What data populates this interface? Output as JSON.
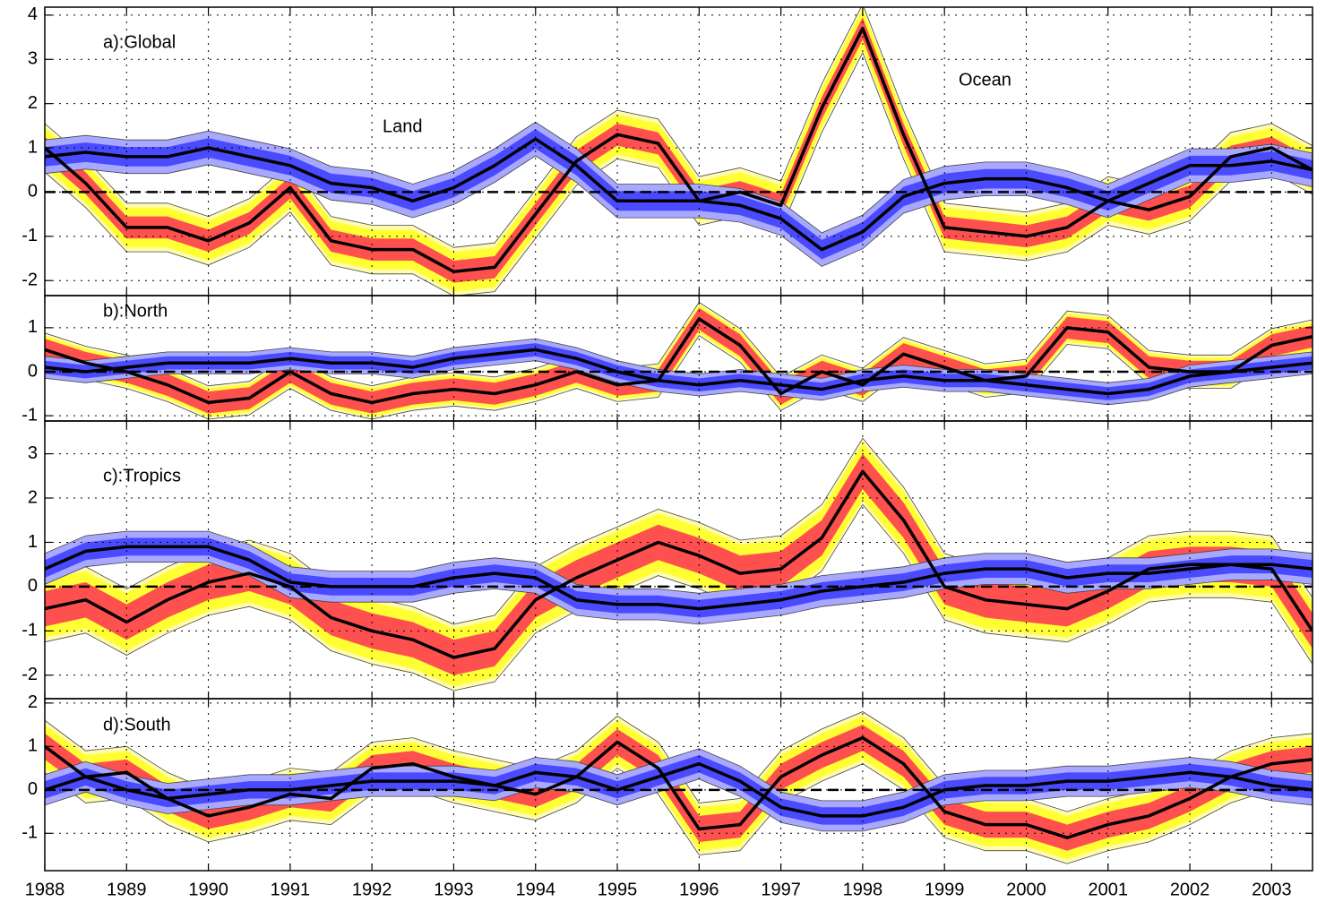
{
  "chart_data": [
    {
      "type": "line",
      "annotation": "a):Global",
      "x": [
        1988,
        1988.5,
        1989,
        1989.5,
        1990,
        1990.5,
        1991,
        1991.5,
        1992,
        1992.5,
        1993,
        1993.5,
        1994,
        1994.5,
        1995,
        1995.5,
        1996,
        1996.5,
        1997,
        1997.5,
        1998,
        1998.5,
        1999,
        1999.5,
        2000,
        2000.5,
        2001,
        2001.5,
        2002,
        2002.5,
        2003,
        2003.5
      ],
      "xlim": [
        1988,
        2003.5
      ],
      "xticks": [
        1988,
        1989,
        1990,
        1991,
        1992,
        1993,
        1994,
        1995,
        1996,
        1997,
        1998,
        1999,
        2000,
        2001,
        2002,
        2003
      ],
      "ylim": [
        -2.34,
        4.18
      ],
      "yticks": [
        -2,
        -1,
        0,
        1,
        2,
        3,
        4
      ],
      "grid": true,
      "series": [
        {
          "name": "Land",
          "label_color": "#ff2020",
          "color": "#000000",
          "values": [
            1.0,
            0.2,
            -0.8,
            -0.8,
            -1.1,
            -0.7,
            0.1,
            -1.1,
            -1.3,
            -1.3,
            -1.8,
            -1.7,
            -0.5,
            0.7,
            1.3,
            1.1,
            -0.2,
            0.0,
            -0.3,
            1.9,
            3.7,
            1.3,
            -0.8,
            -0.9,
            -1.0,
            -0.8,
            -0.2,
            -0.4,
            -0.1,
            0.8,
            1.0,
            0.5
          ],
          "band_colors": [
            "#fffbb0",
            "#ffff33",
            "#ff5050"
          ],
          "band_halfwidths": [
            0.55,
            0.45,
            0.25
          ]
        },
        {
          "name": "Ocean",
          "label_color": "#3030ff",
          "color": "#000000",
          "values": [
            0.8,
            0.9,
            0.8,
            0.8,
            1.0,
            0.8,
            0.6,
            0.2,
            0.1,
            -0.2,
            0.1,
            0.6,
            1.2,
            0.6,
            -0.2,
            -0.2,
            -0.2,
            -0.3,
            -0.6,
            -1.3,
            -0.9,
            -0.1,
            0.2,
            0.3,
            0.3,
            0.1,
            -0.2,
            0.2,
            0.6,
            0.6,
            0.7,
            0.5
          ],
          "band_colors": [
            "#a8a8ff",
            "#4a4aff"
          ],
          "band_halfwidths": [
            0.38,
            0.22
          ]
        }
      ]
    },
    {
      "type": "line",
      "annotation": "b):North",
      "x": [
        1988,
        1988.5,
        1989,
        1989.5,
        1990,
        1990.5,
        1991,
        1991.5,
        1992,
        1992.5,
        1993,
        1993.5,
        1994,
        1994.5,
        1995,
        1995.5,
        1996,
        1996.5,
        1997,
        1997.5,
        1998,
        1998.5,
        1999,
        1999.5,
        2000,
        2000.5,
        2001,
        2001.5,
        2002,
        2002.5,
        2003,
        2003.5
      ],
      "xlim": [
        1988,
        2003.5
      ],
      "xticks": [
        1988,
        1989,
        1990,
        1991,
        1992,
        1993,
        1994,
        1995,
        1996,
        1997,
        1998,
        1999,
        2000,
        2001,
        2002,
        2003
      ],
      "ylim": [
        -1.12,
        1.73
      ],
      "yticks": [
        -1,
        0,
        1
      ],
      "grid": true,
      "series": [
        {
          "color": "#000000",
          "values": [
            0.5,
            0.2,
            0.0,
            -0.3,
            -0.7,
            -0.6,
            0.0,
            -0.5,
            -0.7,
            -0.5,
            -0.4,
            -0.5,
            -0.3,
            0.0,
            -0.3,
            -0.2,
            1.2,
            0.6,
            -0.5,
            0.0,
            -0.3,
            0.4,
            0.1,
            -0.2,
            -0.1,
            1.0,
            0.9,
            0.1,
            0.0,
            0.0,
            0.6,
            0.8
          ],
          "band_colors": [
            "#fffbb0",
            "#ffff33",
            "#ff5050"
          ],
          "band_halfwidths": [
            0.38,
            0.32,
            0.25
          ]
        },
        {
          "color": "#000000",
          "values": [
            0.1,
            0.0,
            0.1,
            0.2,
            0.2,
            0.2,
            0.3,
            0.2,
            0.2,
            0.1,
            0.3,
            0.4,
            0.5,
            0.3,
            0.0,
            -0.2,
            -0.3,
            -0.2,
            -0.3,
            -0.4,
            -0.2,
            -0.1,
            -0.2,
            -0.2,
            -0.3,
            -0.4,
            -0.5,
            -0.4,
            -0.1,
            0.0,
            0.1,
            0.2
          ],
          "band_colors": [
            "#a8a8ff",
            "#4a4aff"
          ],
          "band_halfwidths": [
            0.25,
            0.15
          ]
        }
      ]
    },
    {
      "type": "line",
      "annotation": "c):Tropics",
      "x": [
        1988,
        1988.5,
        1989,
        1989.5,
        1990,
        1990.5,
        1991,
        1991.5,
        1992,
        1992.5,
        1993,
        1993.5,
        1994,
        1994.5,
        1995,
        1995.5,
        1996,
        1996.5,
        1997,
        1997.5,
        1998,
        1998.5,
        1999,
        1999.5,
        2000,
        2000.5,
        2001,
        2001.5,
        2002,
        2002.5,
        2003,
        2003.5
      ],
      "xlim": [
        1988,
        2003.5
      ],
      "xticks": [
        1988,
        1989,
        1990,
        1991,
        1992,
        1993,
        1994,
        1995,
        1996,
        1997,
        1998,
        1999,
        2000,
        2001,
        2002,
        2003
      ],
      "ylim": [
        -2.53,
        3.74
      ],
      "yticks": [
        -2,
        -1,
        0,
        1,
        2,
        3
      ],
      "grid": true,
      "series": [
        {
          "color": "#000000",
          "values": [
            -0.5,
            -0.3,
            -0.8,
            -0.3,
            0.1,
            0.3,
            0.0,
            -0.7,
            -1.0,
            -1.2,
            -1.6,
            -1.4,
            -0.3,
            0.2,
            0.6,
            1.0,
            0.7,
            0.3,
            0.4,
            1.1,
            2.6,
            1.5,
            0.0,
            -0.3,
            -0.4,
            -0.5,
            -0.1,
            0.4,
            0.5,
            0.5,
            0.4,
            -1.0
          ],
          "band_colors": [
            "#fffbb0",
            "#ffff33",
            "#ff5050"
          ],
          "band_halfwidths": [
            0.75,
            0.65,
            0.4
          ]
        },
        {
          "color": "#000000",
          "values": [
            0.4,
            0.8,
            0.9,
            0.9,
            0.9,
            0.6,
            0.1,
            0.0,
            0.0,
            0.0,
            0.2,
            0.3,
            0.2,
            -0.3,
            -0.4,
            -0.4,
            -0.5,
            -0.4,
            -0.3,
            -0.1,
            0.0,
            0.1,
            0.3,
            0.4,
            0.4,
            0.2,
            0.3,
            0.3,
            0.4,
            0.5,
            0.5,
            0.4
          ],
          "band_colors": [
            "#a8a8ff",
            "#4a4aff"
          ],
          "band_halfwidths": [
            0.35,
            0.2
          ]
        }
      ]
    },
    {
      "type": "line",
      "annotation": "d):South",
      "x": [
        1988,
        1988.5,
        1989,
        1989.5,
        1990,
        1990.5,
        1991,
        1991.5,
        1992,
        1992.5,
        1993,
        1993.5,
        1994,
        1994.5,
        1995,
        1995.5,
        1996,
        1996.5,
        1997,
        1997.5,
        1998,
        1998.5,
        1999,
        1999.5,
        2000,
        2000.5,
        2001,
        2001.5,
        2002,
        2002.5,
        2003,
        2003.5
      ],
      "xlim": [
        1988,
        2003.5
      ],
      "xticks": [
        1988,
        1989,
        1990,
        1991,
        1992,
        1993,
        1994,
        1995,
        1996,
        1997,
        1998,
        1999,
        2000,
        2001,
        2002,
        2003
      ],
      "ylim": [
        -1.86,
        2.1
      ],
      "yticks": [
        -1,
        0,
        1,
        2
      ],
      "grid": true,
      "series": [
        {
          "color": "#000000",
          "values": [
            1.0,
            0.3,
            0.4,
            -0.2,
            -0.6,
            -0.4,
            -0.1,
            -0.2,
            0.5,
            0.6,
            0.3,
            0.1,
            -0.1,
            0.3,
            1.1,
            0.5,
            -0.9,
            -0.8,
            0.3,
            0.8,
            1.2,
            0.6,
            -0.5,
            -0.8,
            -0.8,
            -1.1,
            -0.8,
            -0.6,
            -0.2,
            0.3,
            0.6,
            0.7
          ],
          "band_colors": [
            "#fffbb0",
            "#ffff33",
            "#ff5050"
          ],
          "band_halfwidths": [
            0.6,
            0.5,
            0.3
          ]
        },
        {
          "color": "#000000",
          "values": [
            0.0,
            0.3,
            0.0,
            -0.2,
            -0.1,
            0.0,
            0.0,
            0.1,
            0.2,
            0.2,
            0.2,
            0.1,
            0.4,
            0.3,
            0.0,
            0.3,
            0.6,
            0.2,
            -0.4,
            -0.6,
            -0.6,
            -0.4,
            0.0,
            0.1,
            0.1,
            0.2,
            0.2,
            0.3,
            0.4,
            0.3,
            0.1,
            0.0
          ],
          "band_colors": [
            "#a8a8ff",
            "#4a4aff"
          ],
          "band_halfwidths": [
            0.35,
            0.2
          ]
        }
      ]
    }
  ]
}
